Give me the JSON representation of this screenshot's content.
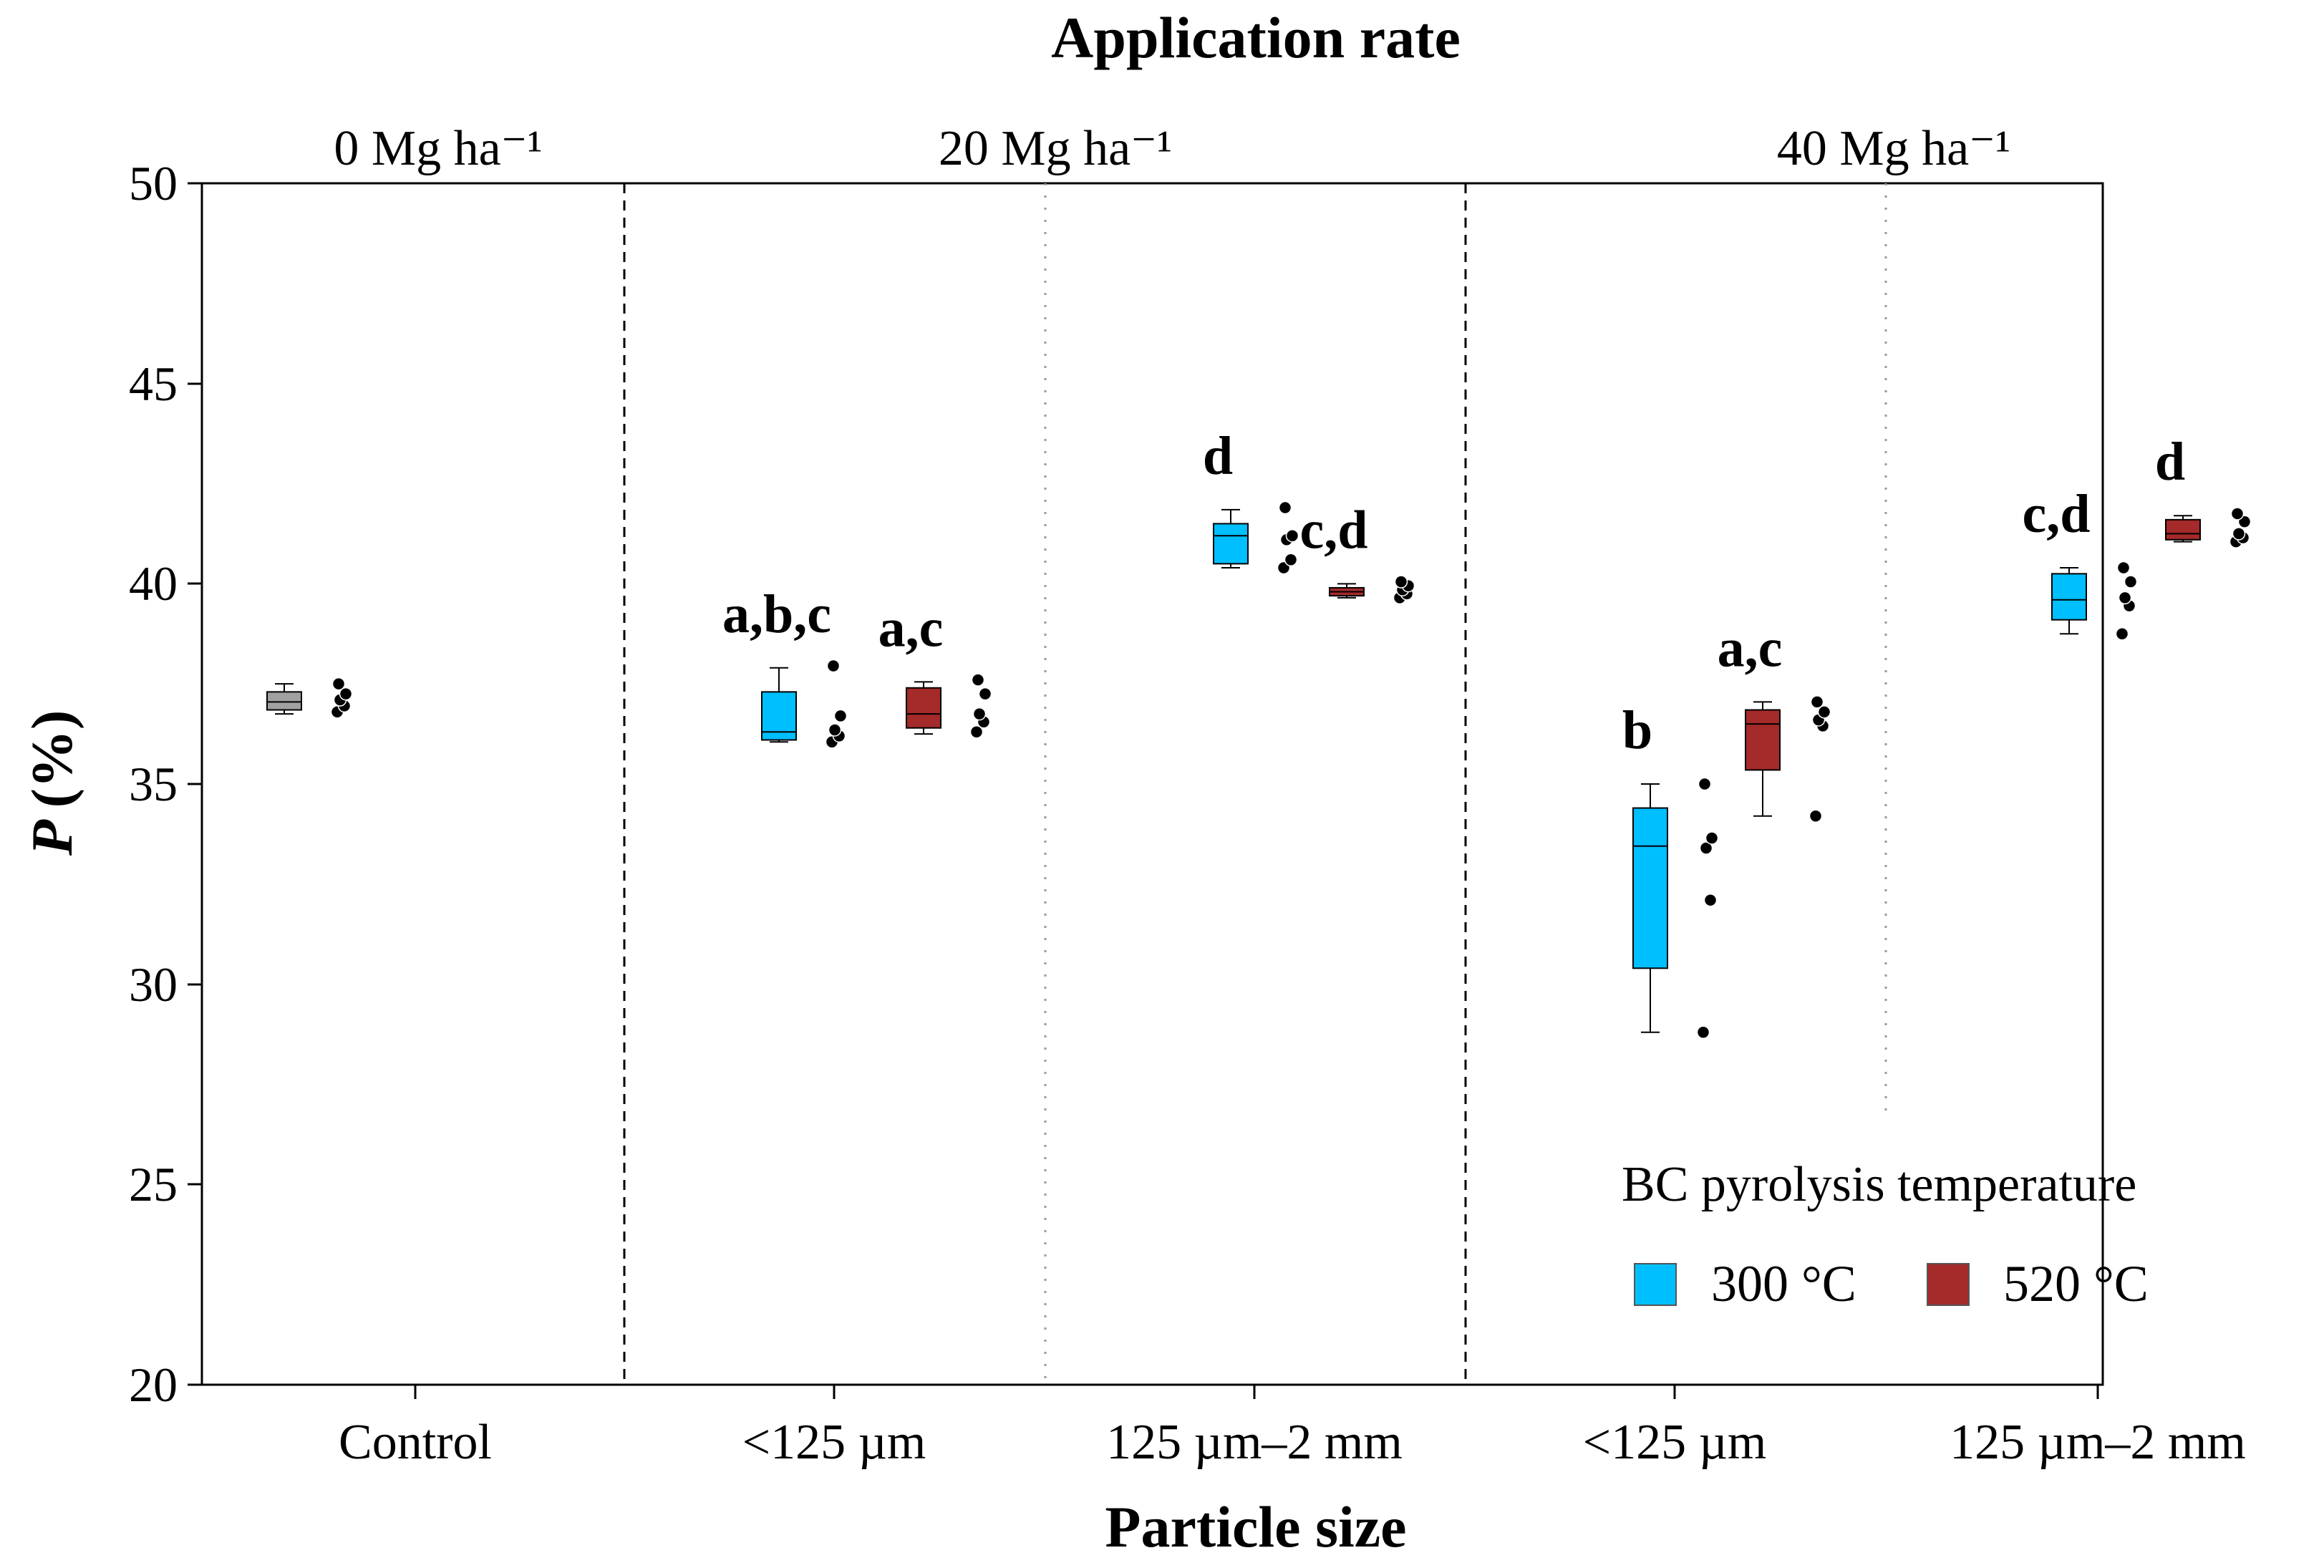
{
  "chart_data": {
    "type": "boxplot",
    "title": "Application rate",
    "xlabel": "Particle size",
    "ylabel": "P (%)",
    "ylabel_symbol": "P",
    "ylabel_unit": "(%)",
    "ylim": [
      20,
      50
    ],
    "yticks": [
      "20",
      "25",
      "30",
      "35",
      "40",
      "45",
      "50"
    ],
    "rate_groups": [
      "0 Mg ha⁻¹",
      "20 Mg ha⁻¹",
      "40 Mg ha⁻¹"
    ],
    "categories": [
      "Control",
      "<125 µm",
      "125 µm–2 mm",
      "<125 µm",
      "125 µm–2 mm"
    ],
    "legend": {
      "title": "BC pyrolysis temperature",
      "position": "bottom-right",
      "items": [
        {
          "label": "300 °C",
          "color": "#00BFFF"
        },
        {
          "label": "520 °C",
          "color": "#A52A2A"
        }
      ]
    },
    "control_color": "#A0A0A0",
    "boxes": [
      {
        "category_index": 0,
        "series": "Control",
        "min": 36.75,
        "q1": 36.85,
        "median": 37.05,
        "q3": 37.3,
        "max": 37.5,
        "points": [
          36.8,
          36.95,
          37.1,
          37.25,
          37.5
        ],
        "letters": ""
      },
      {
        "category_index": 1,
        "series": "300 °C",
        "min": 36.05,
        "q1": 36.1,
        "median": 36.3,
        "q3": 37.3,
        "max": 37.9,
        "points": [
          36.05,
          36.2,
          36.35,
          36.7,
          37.95
        ],
        "letters": "a,b,c"
      },
      {
        "category_index": 1,
        "series": "520 °C",
        "min": 36.25,
        "q1": 36.4,
        "median": 36.75,
        "q3": 37.4,
        "max": 37.55,
        "points": [
          36.3,
          36.55,
          36.75,
          37.25,
          37.6
        ],
        "letters": "a,c"
      },
      {
        "category_index": 2,
        "series": "300 °C",
        "min": 40.4,
        "q1": 40.5,
        "median": 41.2,
        "q3": 41.5,
        "max": 41.85,
        "points": [
          40.4,
          40.6,
          41.1,
          41.2,
          41.9
        ],
        "letters": "d"
      },
      {
        "category_index": 2,
        "series": "520 °C",
        "min": 39.65,
        "q1": 39.7,
        "median": 39.8,
        "q3": 39.9,
        "max": 40.0,
        "points": [
          39.65,
          39.75,
          39.85,
          39.95,
          40.05
        ],
        "letters": "c,d"
      },
      {
        "category_index": 3,
        "series": "300 °C",
        "min": 28.8,
        "q1": 30.4,
        "median": 33.45,
        "q3": 34.4,
        "max": 35.0,
        "points": [
          28.8,
          32.1,
          33.4,
          33.65,
          35.0
        ],
        "letters": "b"
      },
      {
        "category_index": 3,
        "series": "520 °C",
        "min": 34.2,
        "q1": 35.35,
        "median": 36.5,
        "q3": 36.85,
        "max": 37.05,
        "points": [
          34.2,
          36.45,
          36.6,
          36.8,
          37.05
        ],
        "letters": "a,c"
      },
      {
        "category_index": 4,
        "series": "300 °C",
        "min": 38.75,
        "q1": 39.1,
        "median": 39.6,
        "q3": 40.25,
        "max": 40.4,
        "points": [
          38.75,
          39.45,
          39.65,
          40.05,
          40.4
        ],
        "letters": "c,d"
      },
      {
        "category_index": 4,
        "series": "520 °C",
        "min": 41.05,
        "q1": 41.1,
        "median": 41.25,
        "q3": 41.6,
        "max": 41.7,
        "points": [
          41.05,
          41.15,
          41.25,
          41.55,
          41.75
        ],
        "letters": "d"
      }
    ]
  }
}
